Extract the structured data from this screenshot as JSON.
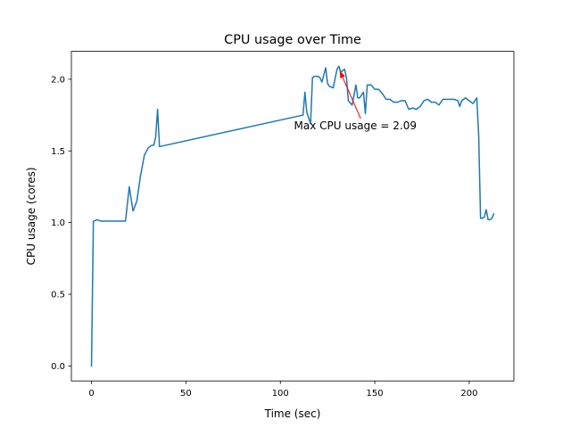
{
  "chart_data": {
    "type": "line",
    "title": "CPU usage over Time",
    "xlabel": "Time (sec)",
    "ylabel": "CPU usage (cores)",
    "xlim": [
      -10.65,
      223.65
    ],
    "ylim": [
      -0.1045,
      2.1945
    ],
    "xticks": [
      0,
      50,
      100,
      150,
      200
    ],
    "yticks": [
      0.0,
      0.5,
      1.0,
      1.5,
      2.0
    ],
    "xtick_labels": [
      "0",
      "50",
      "100",
      "150",
      "200"
    ],
    "ytick_labels": [
      "0.0",
      "0.5",
      "1.0",
      "1.5",
      "2.0"
    ],
    "grid": false,
    "series": [
      {
        "color": "#1f77b4",
        "x": [
          0,
          1,
          3,
          5,
          10,
          15,
          18,
          20,
          22,
          24,
          26,
          27,
          28,
          30,
          32,
          33,
          34,
          35,
          36,
          112,
          113,
          114,
          116,
          117,
          118,
          120,
          121,
          122,
          124,
          125,
          126,
          128,
          130,
          131,
          132,
          134,
          135,
          136,
          138,
          140,
          141,
          142,
          144,
          145,
          146,
          148,
          150,
          152,
          154,
          156,
          158,
          160,
          162,
          164,
          166,
          168,
          170,
          172,
          174,
          176,
          178,
          180,
          182,
          184,
          186,
          188,
          190,
          192,
          194,
          195,
          196,
          198,
          200,
          202,
          204,
          205,
          206,
          207,
          208,
          209,
          210,
          211,
          212,
          213
        ],
        "y": [
          0.0,
          1.01,
          1.02,
          1.01,
          1.01,
          1.01,
          1.01,
          1.25,
          1.08,
          1.15,
          1.33,
          1.4,
          1.47,
          1.52,
          1.54,
          1.54,
          1.6,
          1.79,
          1.53,
          1.75,
          1.91,
          1.77,
          1.69,
          2.01,
          2.02,
          2.02,
          2.01,
          1.98,
          2.08,
          1.97,
          1.95,
          1.94,
          2.07,
          2.09,
          2.05,
          2.07,
          2.01,
          1.85,
          1.82,
          1.96,
          1.87,
          1.87,
          1.91,
          1.76,
          1.96,
          1.96,
          1.93,
          1.93,
          1.9,
          1.86,
          1.86,
          1.84,
          1.84,
          1.85,
          1.85,
          1.79,
          1.8,
          1.79,
          1.81,
          1.85,
          1.86,
          1.84,
          1.84,
          1.82,
          1.86,
          1.86,
          1.86,
          1.86,
          1.85,
          1.81,
          1.85,
          1.87,
          1.85,
          1.83,
          1.87,
          1.61,
          1.03,
          1.03,
          1.04,
          1.09,
          1.02,
          1.02,
          1.03,
          1.06
        ]
      }
    ],
    "annotations": [
      {
        "text": "Max CPU usage = 2.09",
        "xy": [
          131,
          2.09
        ],
        "xytext": [
          143,
          1.65
        ],
        "color": "#ff0000"
      }
    ]
  }
}
